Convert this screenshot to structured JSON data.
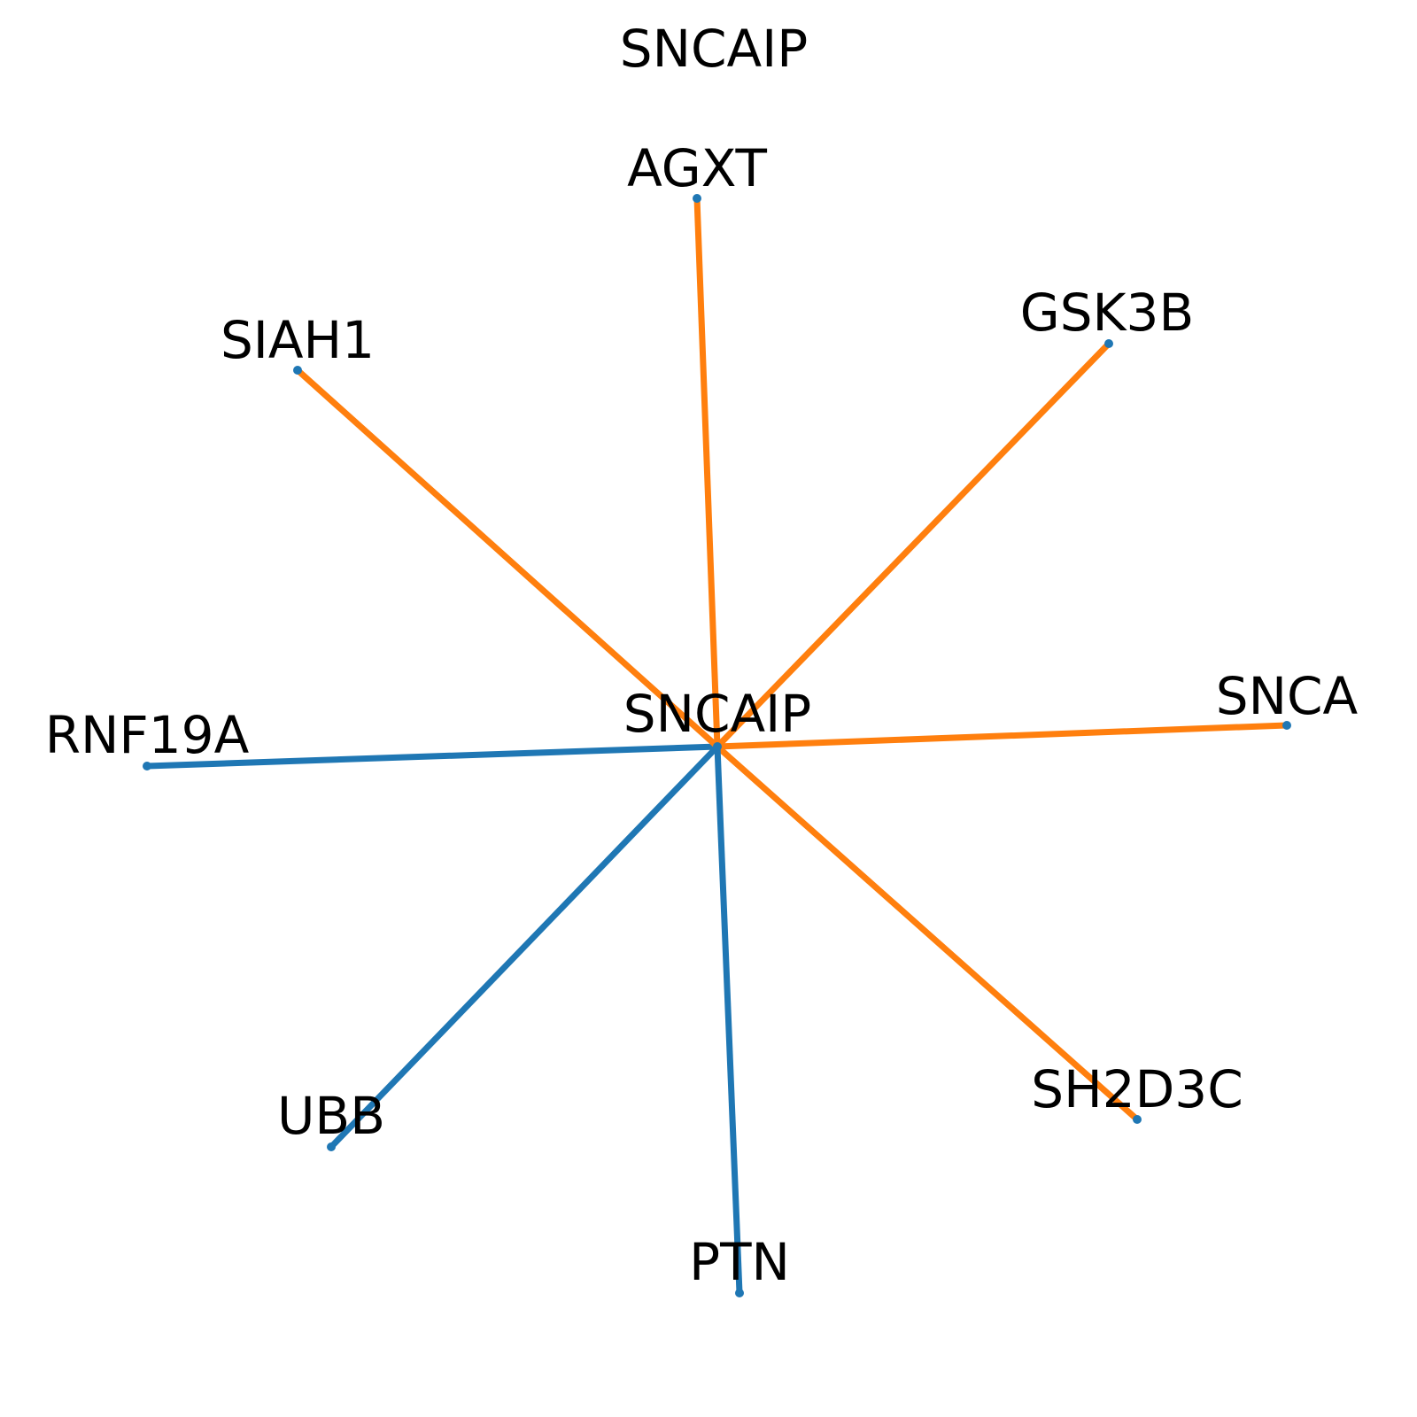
{
  "title": "SNCAIP",
  "center": {
    "label": "SNCAIP"
  },
  "nodes": [
    {
      "id": "AGXT",
      "label": "AGXT",
      "edge_color": "orange"
    },
    {
      "id": "GSK3B",
      "label": "GSK3B",
      "edge_color": "orange"
    },
    {
      "id": "SNCA",
      "label": "SNCA",
      "edge_color": "orange"
    },
    {
      "id": "SH2D3C",
      "label": "SH2D3C",
      "edge_color": "orange"
    },
    {
      "id": "PTN",
      "label": "PTN",
      "edge_color": "blue"
    },
    {
      "id": "UBB",
      "label": "UBB",
      "edge_color": "blue"
    },
    {
      "id": "RNF19A",
      "label": "RNF19A",
      "edge_color": "blue"
    },
    {
      "id": "SIAH1",
      "label": "SIAH1",
      "edge_color": "orange"
    }
  ],
  "colors": {
    "orange": "#ff7f0e",
    "blue": "#1f77b4",
    "node": "#1f77b4",
    "text": "#000000",
    "background": "#ffffff"
  }
}
